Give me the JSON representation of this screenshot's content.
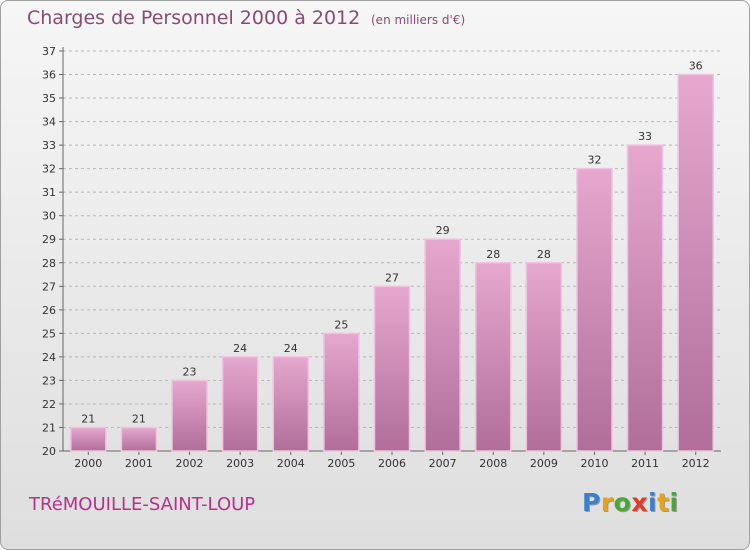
{
  "chart_data": {
    "type": "bar",
    "title": "Charges de Personnel 2000 à 2012",
    "subtitle": "(en milliers d'€)",
    "categories": [
      "2000",
      "2001",
      "2002",
      "2003",
      "2004",
      "2005",
      "2006",
      "2007",
      "2008",
      "2009",
      "2010",
      "2011",
      "2012"
    ],
    "values": [
      21,
      21,
      23,
      24,
      24,
      25,
      27,
      29,
      28,
      28,
      32,
      33,
      36
    ],
    "xlabel": "",
    "ylabel": "",
    "ylim": [
      20,
      37
    ],
    "yticks": [
      20,
      21,
      22,
      23,
      24,
      25,
      26,
      27,
      28,
      29,
      30,
      31,
      32,
      33,
      34,
      35,
      36,
      37
    ],
    "grid": true,
    "colors": {
      "bar_top": "#e6a8cf",
      "bar_bottom": "#b06e99",
      "bar_highlight": "#eec3de"
    }
  },
  "footer": {
    "commune": "TRéMOUILLE-SAINT-LOUP"
  },
  "logo": {
    "letters": [
      "P",
      "r",
      "o",
      "x",
      "i",
      "t",
      "i"
    ],
    "colors": [
      "#3a7fd0",
      "#e8a21a",
      "#4aa83a",
      "#e03a2a",
      "#3a7fd0",
      "#e8a21a",
      "#4aa83a"
    ]
  }
}
